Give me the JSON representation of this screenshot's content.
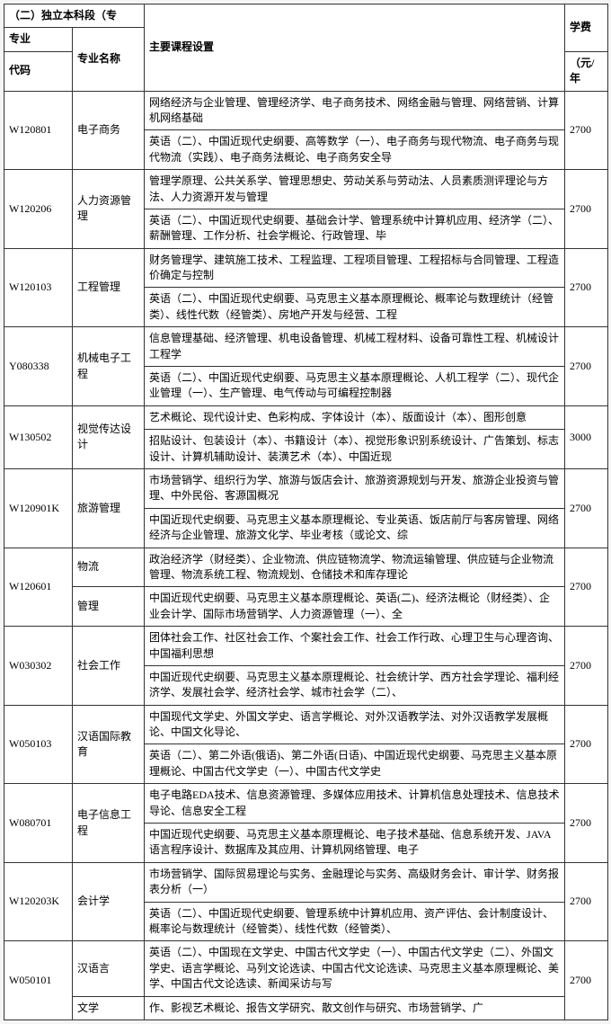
{
  "section_title": "（二）独立本科段（专",
  "headers": {
    "code_top": "专业",
    "code_bot": "代码",
    "name": "专业名称",
    "course": "主要课程设置",
    "fee_top": "学费",
    "fee_bot": "（元/年"
  },
  "rows": [
    {
      "code": "W120801",
      "name": "电子商务",
      "c1": "网络经济与企业管理、管理经济学、电子商务技术、网络金融与管理、网络营销、计算机网络基础",
      "c2": "英语（二）、中国近现代史纲要、高等数学（一）、电子商务与现代物流、电子商务与现代物流（实践）、电子商务法概论、电子商务安全导",
      "fee": "2700"
    },
    {
      "code": "W120206",
      "name": "人力资源管理",
      "c1": "管理学原理、公共关系学、管理思想史、劳动关系与劳动法、人员素质测评理论与方法、人力资源开发与管理",
      "c2": "英语（二）、中国近现代史纲要、基础会计学、管理系统中计算机应用、经济学（二）、薪酬管理、工作分析、社会学概论、行政管理、毕",
      "fee": "2700"
    },
    {
      "code": "W120103",
      "name": "工程管理",
      "c1": "财务管理学、建筑施工技术、工程监理、工程项目管理、工程招标与合同管理、工程造价确定与控制",
      "c2": "英语（二）、中国近现代史纲要、马克思主义基本原理概论、概率论与数理统计（经管类）、线性代数（经管类）、房地产开发与经营、工程",
      "fee": "2700"
    },
    {
      "code": "Y080338",
      "name": "机械电子工程",
      "c1": "信息管理基础、经济管理、机电设备管理、机械工程材料、设备可靠性工程、机械设计工程学",
      "c2": "英语（二）、中国近现代史纲要、马克思主义基本原理概论、人机工程学（二）、现代企业管理（一）、生产管理、电气传动与可编程控制器",
      "fee": "2700"
    },
    {
      "code": "W130502",
      "name": "视觉传达设计",
      "c1": "艺术概论、现代设计史、色彩构成、字体设计（本）、版面设计（本）、图形创意",
      "c2": "招贴设计、包装设计（本）、书籍设计（本）、视觉形象识别系统设计、广告策划、标志设计、计算机辅助设计、装潢艺术（本）、中国近现",
      "fee": "3000"
    },
    {
      "code": "W120901K",
      "name": "旅游管理",
      "c1": "市场营销学、组织行为学、旅游与饭店会计、旅游资源规划与开发、旅游企业投资与管理、中外民俗、客源国概况",
      "c2": "中国近现代史纲要、马克思主义基本原理概论、专业英语、饭店前厅与客房管理、网络经济与企业管理、旅游文化学、毕业考核（或论文、综",
      "fee": "2700"
    },
    {
      "code": "W120601",
      "name_top": "物流",
      "name_bot": "管理",
      "c1": "政治经济学（财经类）、企业物流、供应链物流学、物流运输管理、供应链与企业物流管理、物流系统工程、物流规划、仓储技术和库存理论",
      "c2": "中国近现代史纲要、马克思主义基本原理概论、英语(二)、经济法概论（财经类）、企业会计学、国际市场营销学、人力资源管理（一）、全",
      "fee": "2700"
    },
    {
      "code": "W030302",
      "name": "社会工作",
      "c1": "团体社会工作、社区社会工作、个案社会工作、社会工作行政、心理卫生与心理咨询、中国福利思想",
      "c2": "中国近现代史纲要、马克思主义基本原理概论、社会统计学、西方社会学理论、福利经济学、发展社会学、经济社会学、城市社会学（二）、",
      "fee": "2700"
    },
    {
      "code": "W050103",
      "name": "汉语国际教育",
      "c1": "中国现代文学史、外国文学史、语言学概论、对外汉语教学法、对外汉语教学发展概论、中国文化导论、",
      "c2": "英语（二）、第二外语(俄语)、第二外语(日语)、中国近现代史纲要、马克思主义基本原理概论、中国古代文学史（一）、中国古代文学史",
      "fee": "2700"
    },
    {
      "code": "W080701",
      "name": "电子信息工程",
      "c1": "电子电路EDA技术、信息资源管理、多媒体应用技术、计算机信息处理技术、信息技术导论、信息安全工程",
      "c2": "中国近现代史纲要、马克思主义基本原理概论、电子技术基础、信息系统开发、JAVA语言程序设计、数据库及其应用、计算机网络管理、电子",
      "fee": "2700"
    },
    {
      "code": "W120203K",
      "name": "会计学",
      "c1": "市场营销学、国际贸易理论与实务、金融理论与实务、高级财务会计、审计学、财务报表分析（一）",
      "c2": "英语（二）、中国近现代史纲要、管理系统中计算机应用、资产评估、会计制度设计、概率论与数理统计（经管类）、线性代数（经管类）、",
      "fee": "2700"
    },
    {
      "code": "W050101",
      "name_top": "汉语言",
      "name_bot": "文学",
      "c1": "英语（二）、中国现在文学史、中国古代文学史（一）、中国古代文学史（二）、外国文学史、语言学概论、马列文论选读、中国古代文论选读、马克思主义基本原理概论、美学、中国古代文论选读、新闻采访与写",
      "c2": "作、影视艺术概论、报告文学研究、散文创作与研究、市场营销学、广",
      "fee": "2700"
    }
  ]
}
